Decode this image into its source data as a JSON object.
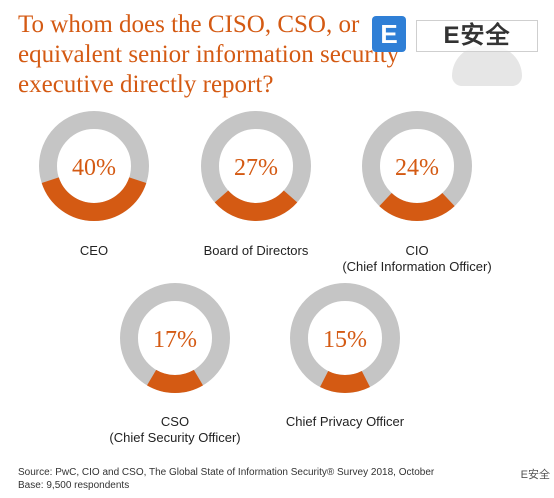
{
  "title": "To whom does the CISO, CSO, or equivalent senior information security executive directly report?",
  "logo": {
    "letter": "E",
    "text": "E安全"
  },
  "colors": {
    "accent": "#d45a13",
    "track": "#c5c5c5",
    "text": "#d45a13"
  },
  "chart_data": {
    "type": "pie",
    "title": "To whom does the CISO, CSO, or equivalent senior information security executive directly report?",
    "items": [
      {
        "label": "CEO",
        "sublabel": "",
        "value": 40,
        "display": "40%"
      },
      {
        "label": "Board of Directors",
        "sublabel": "",
        "value": 27,
        "display": "27%"
      },
      {
        "label": "CIO",
        "sublabel": "(Chief Information Officer)",
        "value": 24,
        "display": "24%"
      },
      {
        "label": "CSO",
        "sublabel": "(Chief Security Officer)",
        "value": 17,
        "display": "17%"
      },
      {
        "label": "Chief Privacy Officer",
        "sublabel": "",
        "value": 15,
        "display": "15%"
      }
    ]
  },
  "source": {
    "line1": "Source: PwC, CIO and CSO, The Global State of Information Security® Survey 2018, October",
    "line2": "Base: 9,500 respondents"
  },
  "watermark": "E安全"
}
